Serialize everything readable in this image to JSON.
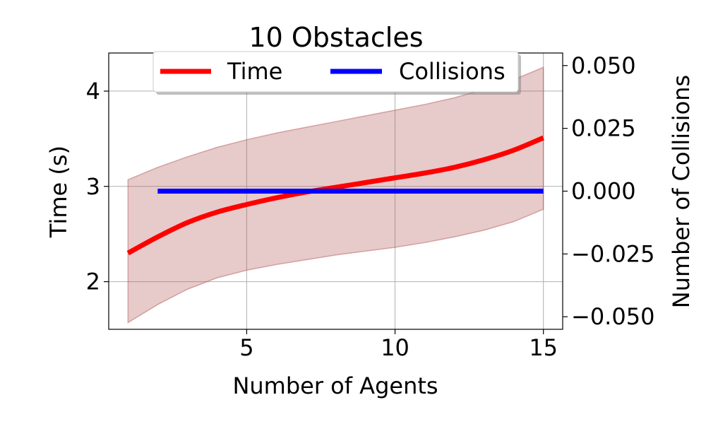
{
  "chart_data": {
    "type": "line",
    "title": "10 Obstacles",
    "xlabel": "Number of Agents",
    "ylabel": "Time (s)",
    "y2label": "Number of Collisions",
    "xlim": [
      0.35,
      15.65
    ],
    "ylim": [
      1.5,
      4.4
    ],
    "y2lim": [
      -0.055,
      0.055
    ],
    "x_ticks": [
      5,
      10,
      15
    ],
    "y_ticks": [
      2,
      3,
      4
    ],
    "y2_ticks": [
      0.05,
      0.025,
      0.0,
      -0.025,
      -0.05
    ],
    "x_tick_labels": [
      "5",
      "10",
      "15"
    ],
    "y_tick_labels": [
      "2",
      "3",
      "4"
    ],
    "y2_tick_labels": [
      "0.050",
      "0.025",
      "0.000",
      "−0.025",
      "−0.050"
    ],
    "grid": true,
    "legend_position": "top-center",
    "series": [
      {
        "name": "Time",
        "axis": "left",
        "color": "#ff0000",
        "x": [
          1,
          2,
          3,
          4,
          5,
          6,
          7,
          8,
          9,
          10,
          11,
          12,
          13,
          14,
          15
        ],
        "y": [
          2.3,
          2.47,
          2.62,
          2.73,
          2.81,
          2.88,
          2.94,
          2.99,
          3.04,
          3.09,
          3.14,
          3.2,
          3.28,
          3.38,
          3.51
        ]
      },
      {
        "name": "Collisions",
        "axis": "right",
        "color": "#0000ff",
        "x": [
          2,
          15
        ],
        "y": [
          0.0,
          0.0
        ]
      }
    ],
    "band": {
      "series": "Time",
      "color": "#b05050",
      "x": [
        1,
        2,
        3,
        4,
        5,
        6,
        7,
        8,
        9,
        10,
        11,
        12,
        13,
        14,
        15
      ],
      "upper": [
        3.07,
        3.2,
        3.31,
        3.41,
        3.49,
        3.56,
        3.62,
        3.68,
        3.74,
        3.8,
        3.86,
        3.93,
        4.02,
        4.12,
        4.25
      ],
      "lower": [
        1.57,
        1.76,
        1.92,
        2.04,
        2.12,
        2.18,
        2.23,
        2.28,
        2.32,
        2.36,
        2.41,
        2.47,
        2.54,
        2.63,
        2.76
      ]
    }
  }
}
